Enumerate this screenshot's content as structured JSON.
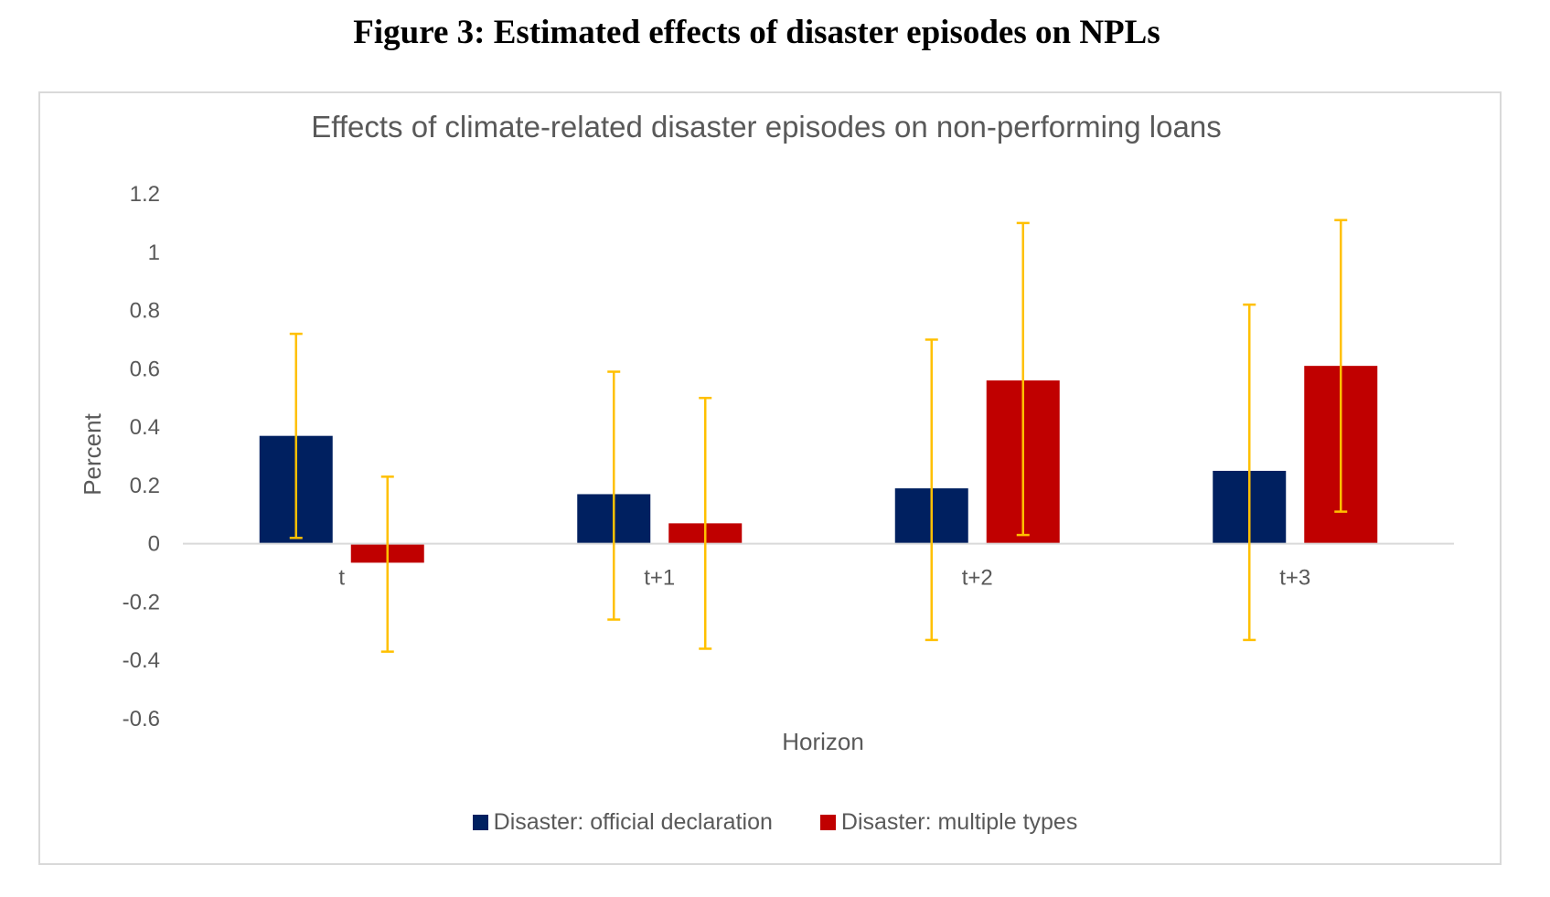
{
  "figure_title": "Figure 3:  Estimated effects of disaster episodes on NPLs",
  "colors": {
    "series1": "#002060",
    "series2": "#c00000",
    "error_bar": "#ffc000",
    "axis": "#d9d9d9",
    "text": "#595959"
  },
  "chart_data": {
    "type": "bar",
    "title": "Effects of climate-related disaster episodes on non-performing loans",
    "xlabel": "Horizon",
    "ylabel": "Percent",
    "ylim": [
      -0.6,
      1.2
    ],
    "yticks": [
      "1.2",
      "1",
      "0.8",
      "0.6",
      "0.4",
      "0.2",
      "0",
      "-0.2",
      "-0.4",
      "-0.6"
    ],
    "ytick_values": [
      1.2,
      1.0,
      0.8,
      0.6,
      0.4,
      0.2,
      0,
      -0.2,
      -0.4,
      -0.6
    ],
    "categories": [
      "t",
      "t+1",
      "t+2",
      "t+3"
    ],
    "grid": false,
    "legend_position": "bottom",
    "series": [
      {
        "name": "Disaster: official declaration",
        "values": [
          0.37,
          0.17,
          0.19,
          0.25
        ],
        "error_low": [
          0.02,
          -0.26,
          -0.33,
          -0.33
        ],
        "error_high": [
          0.72,
          0.59,
          0.7,
          0.82
        ]
      },
      {
        "name": "Disaster: multiple types",
        "values": [
          -0.065,
          0.07,
          0.56,
          0.61
        ],
        "error_low": [
          -0.37,
          -0.36,
          0.03,
          0.11
        ],
        "error_high": [
          0.23,
          0.5,
          1.1,
          1.11
        ]
      }
    ]
  }
}
